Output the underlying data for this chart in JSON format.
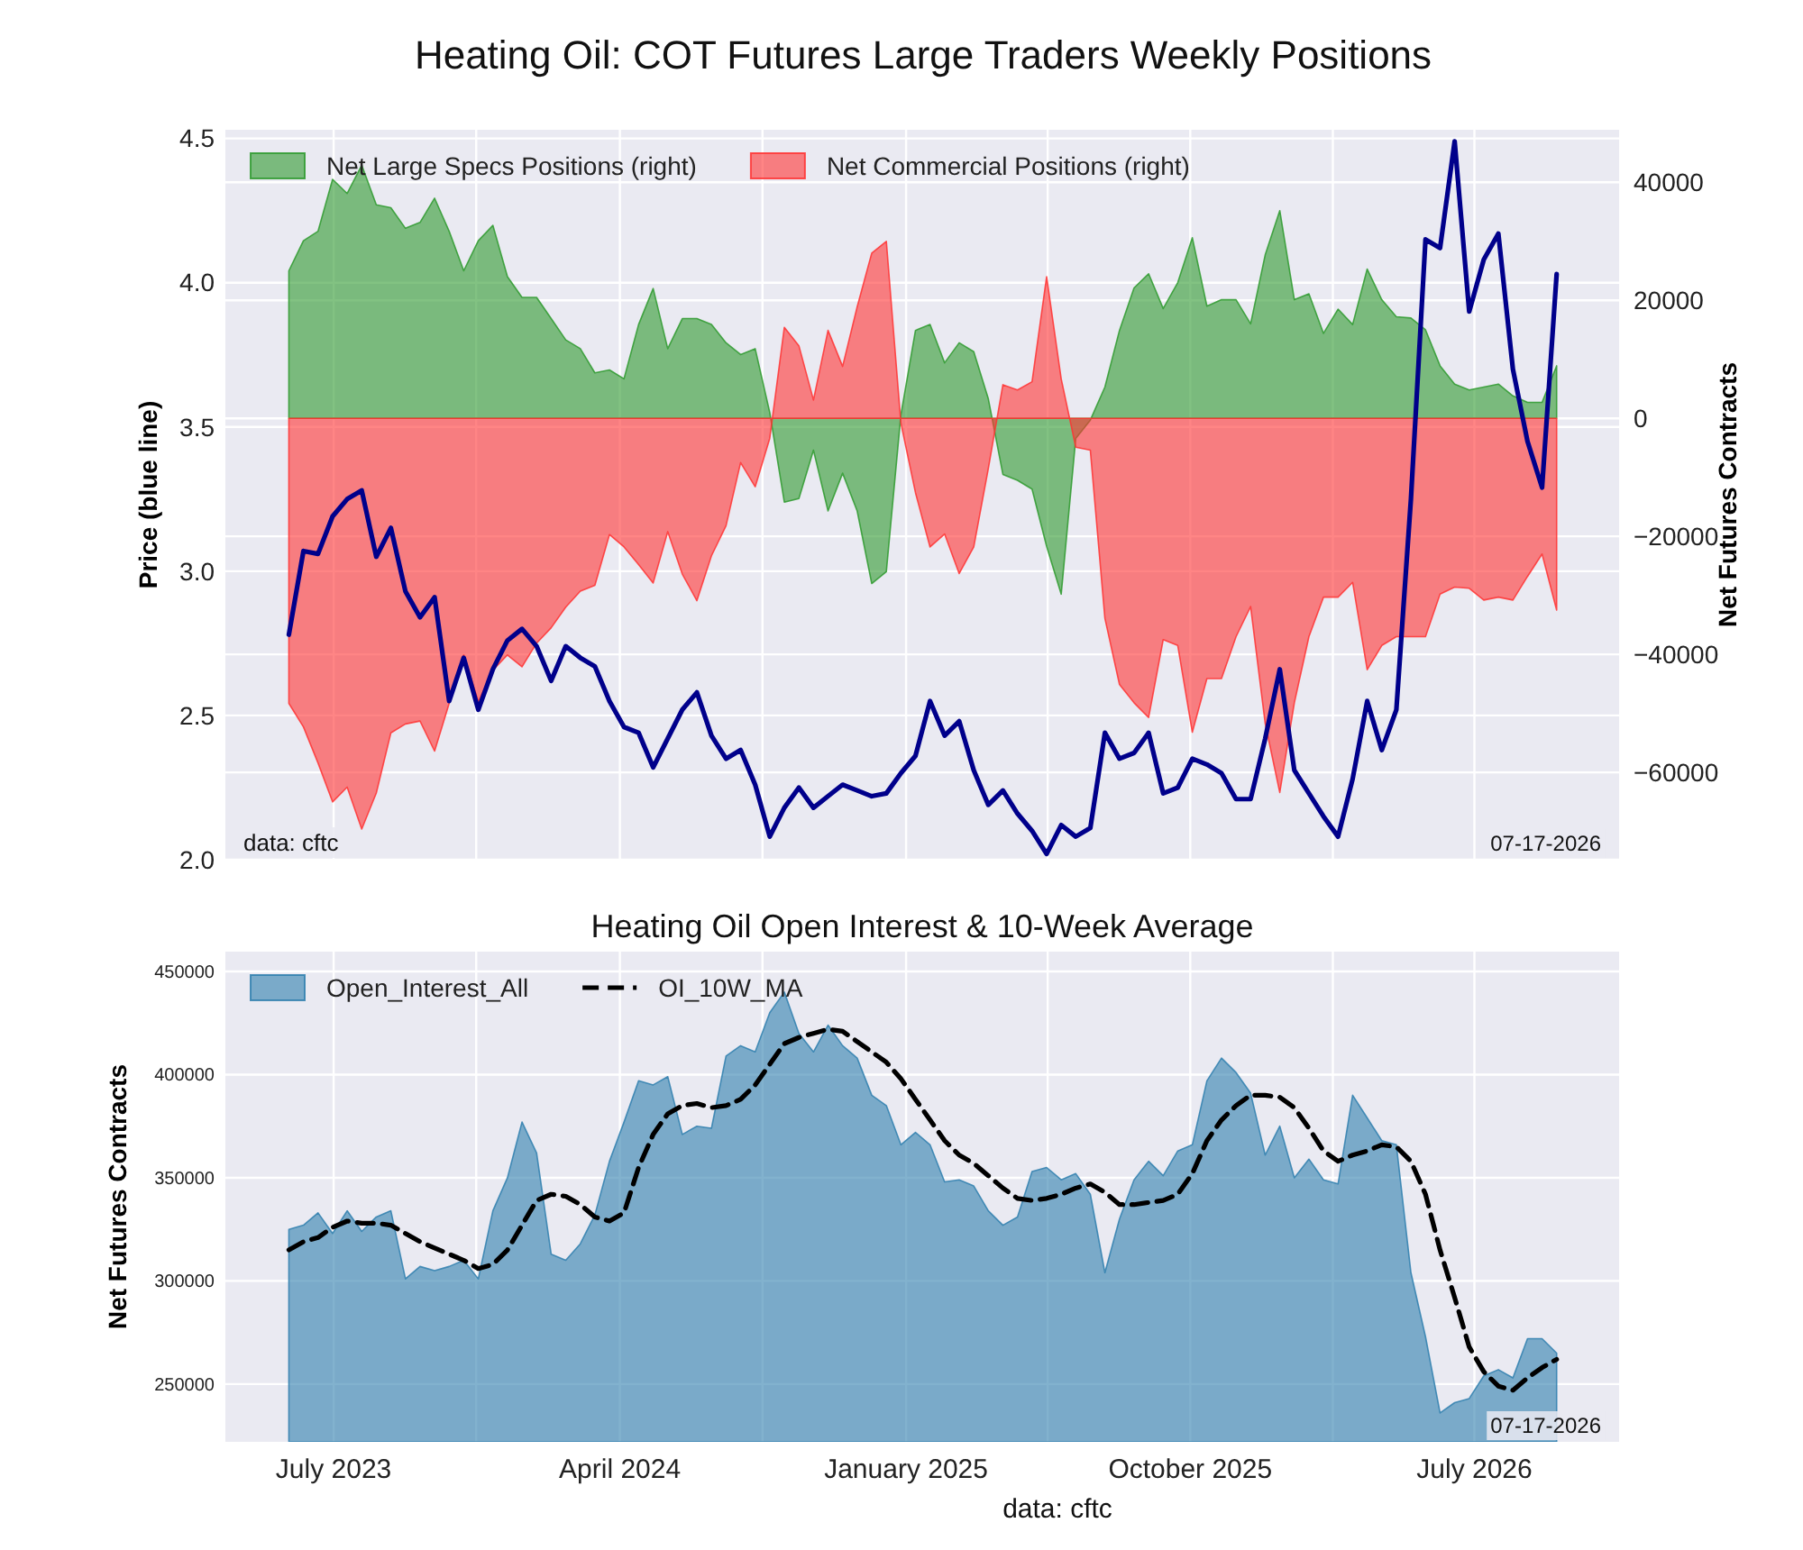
{
  "chart_data": [
    {
      "type": "line",
      "title": "Heating Oil: COT Futures Large Traders Weekly Positions",
      "ylabel": "Price (blue line)",
      "y2label": "Net Futures Contracts",
      "x": [
        "2023-05-19",
        "2023-06-02",
        "2023-06-16",
        "2023-06-30",
        "2023-07-14",
        "2023-07-28",
        "2023-08-11",
        "2023-08-25",
        "2023-09-08",
        "2023-09-22",
        "2023-10-06",
        "2023-10-20",
        "2023-11-03",
        "2023-11-17",
        "2023-12-01",
        "2023-12-15",
        "2023-12-29",
        "2024-01-12",
        "2024-01-26",
        "2024-02-09",
        "2024-02-23",
        "2024-03-08",
        "2024-03-22",
        "2024-04-05",
        "2024-04-19",
        "2024-05-03",
        "2024-05-17",
        "2024-05-31",
        "2024-06-14",
        "2024-06-28",
        "2024-07-12",
        "2024-07-26",
        "2024-08-09",
        "2024-08-23",
        "2024-09-06",
        "2024-09-20",
        "2024-10-04",
        "2024-10-18",
        "2024-11-01",
        "2024-11-15",
        "2024-11-29",
        "2024-12-13",
        "2024-12-27",
        "2025-01-10",
        "2025-01-24",
        "2025-02-07",
        "2025-02-21",
        "2025-03-07",
        "2025-03-21",
        "2025-04-04",
        "2025-04-18",
        "2025-05-02",
        "2025-05-16",
        "2025-05-30",
        "2025-06-13",
        "2025-06-27",
        "2025-07-11",
        "2025-07-25",
        "2025-08-08",
        "2025-08-22",
        "2025-09-05",
        "2025-09-19",
        "2025-10-03",
        "2025-10-17",
        "2025-10-31",
        "2025-11-14",
        "2025-11-28",
        "2025-12-12",
        "2025-12-26",
        "2026-01-09",
        "2026-01-23",
        "2026-02-06",
        "2026-02-20",
        "2026-03-06",
        "2026-03-20",
        "2026-04-03",
        "2026-04-17",
        "2026-05-01",
        "2026-05-15",
        "2026-05-29",
        "2026-06-12",
        "2026-06-26",
        "2026-07-10",
        "2026-07-24",
        "2026-08-07",
        "2026-08-21",
        "2026-09-04",
        "2026-09-18"
      ],
      "series": [
        {
          "type": "area",
          "axis": "y2",
          "name": "Net Large Specs Positions (right)",
          "color": "#2e9a2e",
          "values": [
            25000,
            30100,
            31700,
            40500,
            38100,
            42900,
            36200,
            35700,
            32200,
            33200,
            37300,
            31700,
            25000,
            30100,
            32700,
            24000,
            20500,
            20500,
            16900,
            13300,
            11800,
            7700,
            8200,
            6700,
            15900,
            22000,
            11800,
            16900,
            16900,
            15900,
            12800,
            10800,
            11800,
            1000,
            -14200,
            -13600,
            -5400,
            -15700,
            -9300,
            -15700,
            -28000,
            -26000,
            600,
            14900,
            15900,
            9400,
            12800,
            11300,
            3300,
            -9500,
            -10500,
            -12000,
            -21700,
            -29800,
            -3400,
            -300,
            5300,
            14900,
            22100,
            24500,
            18600,
            23000,
            30600,
            19000,
            20100,
            20100,
            16000,
            27700,
            35200,
            20100,
            21100,
            14400,
            18500,
            15900,
            25300,
            20100,
            17200,
            17000,
            15000,
            8900,
            5800,
            4800,
            5300,
            5800,
            3800,
            2700,
            2700,
            8900
          ]
        },
        {
          "type": "area",
          "axis": "y2",
          "name": "Net Commercial Positions (right)",
          "color": "#ff3333",
          "values": [
            -48300,
            -52300,
            -58400,
            -65000,
            -62500,
            -69600,
            -63500,
            -53300,
            -51800,
            -51300,
            -56400,
            -48300,
            -40100,
            -48000,
            -42700,
            -40100,
            -42100,
            -38100,
            -35500,
            -32000,
            -29300,
            -28300,
            -19700,
            -21800,
            -24800,
            -27900,
            -19200,
            -26400,
            -30900,
            -23300,
            -18200,
            -7500,
            -11600,
            -3400,
            15400,
            12300,
            3100,
            14900,
            8800,
            18900,
            28000,
            30000,
            -800,
            -12600,
            -21800,
            -19600,
            -26300,
            -21800,
            -8500,
            5700,
            4800,
            6200,
            24000,
            6700,
            -4900,
            -5400,
            -33900,
            -45100,
            -48200,
            -50700,
            -37500,
            -38500,
            -53200,
            -44100,
            -44100,
            -37000,
            -31900,
            -51700,
            -63400,
            -48200,
            -37000,
            -30300,
            -30300,
            -27800,
            -42600,
            -38500,
            -37000,
            -37000,
            -37000,
            -29800,
            -28600,
            -28800,
            -30800,
            -30300,
            -30800,
            -26800,
            -23000,
            -32500
          ]
        },
        {
          "color": "#00008b",
          "values": [
            2.78,
            3.07,
            3.06,
            3.19,
            3.25,
            3.28,
            3.05,
            3.15,
            2.93,
            2.84,
            2.91,
            2.55,
            2.7,
            2.52,
            2.66,
            2.76,
            2.8,
            2.74,
            2.62,
            2.74,
            2.7,
            2.67,
            2.55,
            2.46,
            2.44,
            2.32,
            2.42,
            2.52,
            2.58,
            2.43,
            2.35,
            2.38,
            2.26,
            2.08,
            2.18,
            2.25,
            2.18,
            2.22,
            2.26,
            2.24,
            2.22,
            2.23,
            2.3,
            2.36,
            2.55,
            2.43,
            2.48,
            2.31,
            2.19,
            2.24,
            2.16,
            2.1,
            2.02,
            2.12,
            2.08,
            2.11,
            2.44,
            2.35,
            2.37,
            2.44,
            2.23,
            2.25,
            2.35,
            2.33,
            2.3,
            2.21,
            2.21,
            2.42,
            2.66,
            2.31,
            2.23,
            2.15,
            2.08,
            2.28,
            2.55,
            2.38,
            2.52,
            3.25,
            4.15,
            4.12,
            4.49,
            3.9,
            4.08,
            4.17,
            3.7,
            3.45,
            3.29,
            4.03
          ]
        }
      ],
      "xlim": [
        "2023-03-19",
        "2026-11-17"
      ],
      "xticks": [
        {
          "value": "2023-07-01",
          "label": null
        },
        {
          "value": "2023-11-15",
          "label": null
        },
        {
          "value": "2024-04-01",
          "label": null
        },
        {
          "value": "2024-08-16",
          "label": null
        },
        {
          "value": "2025-01-01",
          "label": null
        },
        {
          "value": "2025-05-17",
          "label": null
        },
        {
          "value": "2025-10-01",
          "label": null
        },
        {
          "value": "2026-02-15",
          "label": null
        },
        {
          "value": "2026-07-01",
          "label": null
        }
      ],
      "ylim": [
        2.0,
        4.53
      ],
      "yticks": [
        {
          "value": 2,
          "label": "2.0"
        },
        2.5,
        {
          "value": 3,
          "label": "3.0"
        },
        3.5,
        {
          "value": 4,
          "label": "4.0"
        },
        4.5
      ],
      "y2lim": [
        -74800,
        48900
      ],
      "y2ticks": [
        {
          "value": -60000,
          "label": "−60000"
        },
        {
          "value": -40000,
          "label": "−40000"
        },
        {
          "value": -20000,
          "label": "−20000"
        },
        0,
        20000,
        40000
      ],
      "tick_labels": "y",
      "grid": true,
      "legend": "top left",
      "annotations": [
        "data: cftc",
        "07-17-2026"
      ]
    },
    {
      "type": "area",
      "title": "Heating Oil Open Interest & 10-Week Average",
      "ylabel": "Net Futures Contracts",
      "x": [
        "2023-05-19",
        "2023-06-02",
        "2023-06-16",
        "2023-06-30",
        "2023-07-14",
        "2023-07-28",
        "2023-08-11",
        "2023-08-25",
        "2023-09-08",
        "2023-09-22",
        "2023-10-06",
        "2023-10-20",
        "2023-11-03",
        "2023-11-17",
        "2023-12-01",
        "2023-12-15",
        "2023-12-29",
        "2024-01-12",
        "2024-01-26",
        "2024-02-09",
        "2024-02-23",
        "2024-03-08",
        "2024-03-22",
        "2024-04-05",
        "2024-04-19",
        "2024-05-03",
        "2024-05-17",
        "2024-05-31",
        "2024-06-14",
        "2024-06-28",
        "2024-07-12",
        "2024-07-26",
        "2024-08-09",
        "2024-08-23",
        "2024-09-06",
        "2024-09-20",
        "2024-10-04",
        "2024-10-18",
        "2024-11-01",
        "2024-11-15",
        "2024-11-29",
        "2024-12-13",
        "2024-12-27",
        "2025-01-10",
        "2025-01-24",
        "2025-02-07",
        "2025-02-21",
        "2025-03-07",
        "2025-03-21",
        "2025-04-04",
        "2025-04-18",
        "2025-05-02",
        "2025-05-16",
        "2025-05-30",
        "2025-06-13",
        "2025-06-27",
        "2025-07-11",
        "2025-07-25",
        "2025-08-08",
        "2025-08-22",
        "2025-09-05",
        "2025-09-19",
        "2025-10-03",
        "2025-10-17",
        "2025-10-31",
        "2025-11-14",
        "2025-11-28",
        "2025-12-12",
        "2025-12-26",
        "2026-01-09",
        "2026-01-23",
        "2026-02-06",
        "2026-02-20",
        "2026-03-06",
        "2026-03-20",
        "2026-04-03",
        "2026-04-17",
        "2026-05-01",
        "2026-05-15",
        "2026-05-29",
        "2026-06-12",
        "2026-06-26",
        "2026-07-10",
        "2026-07-24",
        "2026-08-07",
        "2026-08-21",
        "2026-09-04",
        "2026-09-18"
      ],
      "series": [
        {
          "name": "Open_Interest_All",
          "color": "#2f7fae",
          "values": [
            325000,
            327000,
            333000,
            323000,
            334000,
            324000,
            331000,
            334000,
            301000,
            307000,
            305000,
            307000,
            310000,
            301000,
            334000,
            350000,
            377000,
            362000,
            313000,
            310000,
            318000,
            332000,
            358000,
            377000,
            397000,
            395000,
            399000,
            371000,
            375000,
            374000,
            409000,
            414000,
            411000,
            430000,
            440000,
            420000,
            411000,
            424000,
            414000,
            408000,
            390000,
            385000,
            366000,
            372000,
            366000,
            348000,
            349000,
            346000,
            334000,
            327000,
            331000,
            353000,
            355000,
            349000,
            352000,
            342000,
            304000,
            330000,
            349000,
            358000,
            351000,
            363000,
            366000,
            397000,
            408000,
            401000,
            391000,
            361000,
            375000,
            350000,
            359000,
            349000,
            347000,
            390000,
            379000,
            368000,
            366000,
            304000,
            273000,
            236000,
            241000,
            243000,
            254000,
            257000,
            253000,
            272000,
            272000,
            265000
          ]
        },
        {
          "type": "line",
          "name": "OI_10W_MA",
          "color": "#000000",
          "line_style": "dashed",
          "values": [
            315000,
            319000,
            321000,
            326000,
            329000,
            328000,
            328000,
            327000,
            323000,
            319000,
            316000,
            313000,
            310000,
            306000,
            308000,
            315000,
            327000,
            339000,
            342000,
            341000,
            337000,
            331000,
            329000,
            333000,
            355000,
            371000,
            381000,
            385000,
            386000,
            384000,
            385000,
            388000,
            395000,
            405000,
            415000,
            418000,
            420000,
            422000,
            421000,
            416000,
            411000,
            406000,
            398000,
            388000,
            378000,
            368000,
            361000,
            357000,
            351000,
            345000,
            340000,
            339000,
            340000,
            342000,
            345000,
            347000,
            343000,
            337000,
            337000,
            338000,
            339000,
            342000,
            352000,
            368000,
            378000,
            385000,
            390000,
            390000,
            389000,
            384000,
            374000,
            363000,
            358000,
            361000,
            363000,
            366000,
            365000,
            358000,
            342000,
            315000,
            292000,
            268000,
            256000,
            249000,
            247000,
            253000,
            258000,
            262000
          ]
        }
      ],
      "xlim": [
        "2023-03-19",
        "2026-11-17"
      ],
      "xticks": [
        {
          "value": "2023-07-01",
          "label": "July 2023"
        },
        {
          "value": "2023-11-15",
          "label": null
        },
        {
          "value": "2024-04-01",
          "label": "April 2024"
        },
        {
          "value": "2024-08-16",
          "label": null
        },
        {
          "value": "2025-01-01",
          "label": "January 2025"
        },
        {
          "value": "2025-05-17",
          "label": null
        },
        {
          "value": "2025-10-01",
          "label": "October 2025"
        },
        {
          "value": "2026-02-15",
          "label": null
        },
        {
          "value": "2026-07-01",
          "label": "July 2026"
        }
      ],
      "ylim": [
        222000,
        459600
      ],
      "yticks": [
        250000,
        300000,
        350000,
        400000,
        450000
      ],
      "grid": true,
      "legend": "top left",
      "annotations": [
        "07-17-2026",
        "data: cftc"
      ]
    }
  ]
}
